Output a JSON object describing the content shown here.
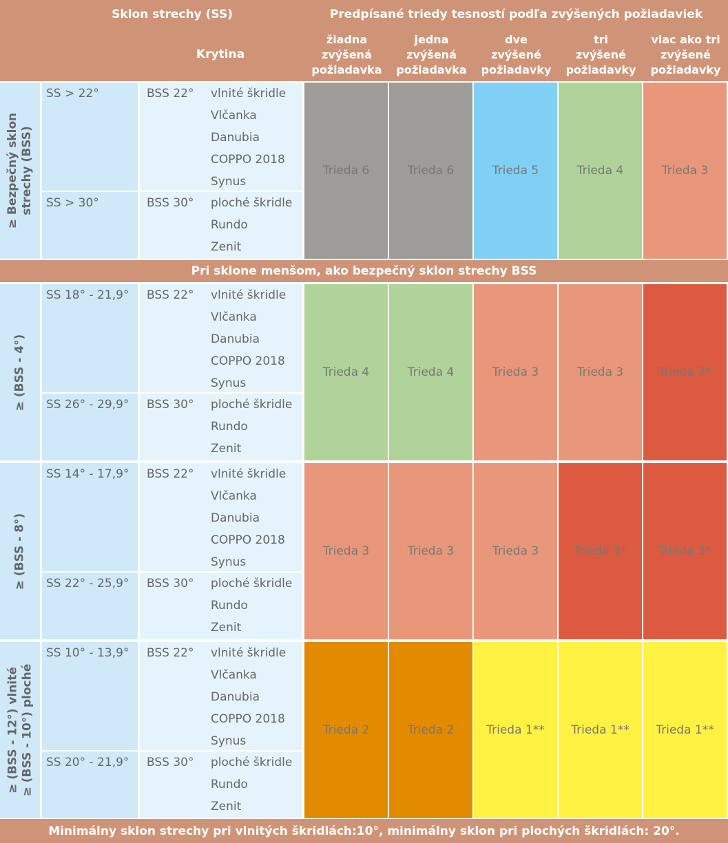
{
  "header": {
    "slope_title": "Sklon strechy (SS)",
    "covering_title": "Krytina",
    "classes_title": "Predpísané triedy tesností podľa zvýšených požiadaviek",
    "columns": [
      "žiadna\nzvýšená\npožiadavka",
      "jedna\nzvýšená\npožiadavka",
      "dve\nzvýšené\npožiadavky",
      "tri\nzvýšené\npožiadavky",
      "viac ako tri\nzvýšené\npožiadavky"
    ]
  },
  "colors": {
    "header": "#cf9478",
    "gray": "#9d9c98",
    "blue": "#80d0f5",
    "green": "#b0d39a",
    "salmon": "#e8977a",
    "red": "#db5a40",
    "orange": "#e28b00",
    "yellow": "#fff243"
  },
  "separator_text": "Pri sklone menšom, ako bezpečný sklon strechy BSS",
  "footer_text": "Minimálny sklon strechy pri vlnitých škridlách:10°, minimálny sklon pri plochých škridlách: 20°.",
  "groups": [
    {
      "label": "≥ Bezpečný sklon\nstrechy (BSS)",
      "rows": [
        {
          "ss": "SS > 22°",
          "bss": "BSS 22°",
          "tiles": [
            "vlnité škridle",
            "Vlčanka",
            "Danubia",
            "COPPO 2018",
            "Synus"
          ]
        },
        {
          "ss": "SS > 30°",
          "bss": "BSS 30°",
          "tiles": [
            "ploché škridle",
            "Rundo",
            "Zenit"
          ]
        }
      ],
      "cells": [
        {
          "text": "Trieda 6",
          "color": "gray"
        },
        {
          "text": "Trieda 6",
          "color": "gray"
        },
        {
          "text": "Trieda 5",
          "color": "blue"
        },
        {
          "text": "Trieda 4",
          "color": "green"
        },
        {
          "text": "Trieda 3",
          "color": "salmon"
        }
      ]
    },
    {
      "label": "≥ (BSS - 4°)",
      "rows": [
        {
          "ss": "SS 18° - 21,9°",
          "bss": "BSS 22°",
          "tiles": [
            "vlnité škridle",
            "Vlčanka",
            "Danubia",
            "COPPO 2018",
            "Synus"
          ]
        },
        {
          "ss": "SS 26° - 29,9°",
          "bss": "BSS 30°",
          "tiles": [
            "ploché škridle",
            "Rundo",
            "Zenit"
          ]
        }
      ],
      "cells": [
        {
          "text": "Trieda 4",
          "color": "green"
        },
        {
          "text": "Trieda 4",
          "color": "green"
        },
        {
          "text": "Trieda 3",
          "color": "salmon"
        },
        {
          "text": "Trieda 3",
          "color": "salmon"
        },
        {
          "text": "Trieda 3*",
          "color": "red"
        }
      ]
    },
    {
      "label": "≥ (BSS - 8°)",
      "rows": [
        {
          "ss": "SS 14° - 17,9°",
          "bss": "BSS 22°",
          "tiles": [
            "vlnité škridle",
            "Vlčanka",
            "Danubia",
            "COPPO 2018",
            "Synus"
          ]
        },
        {
          "ss": "SS 22° - 25,9°",
          "bss": "BSS 30°",
          "tiles": [
            "ploché škridle",
            "Rundo",
            "Zenit"
          ]
        }
      ],
      "cells": [
        {
          "text": "Trieda 3",
          "color": "salmon"
        },
        {
          "text": "Trieda 3",
          "color": "salmon"
        },
        {
          "text": "Trieda 3",
          "color": "salmon"
        },
        {
          "text": "Trieda 3*",
          "color": "red"
        },
        {
          "text": "Trieda 3*",
          "color": "red"
        }
      ]
    },
    {
      "label": "≥ (BSS - 12°) vlnité\n≥ (BSS - 10°) ploché",
      "rows": [
        {
          "ss": "SS 10° - 13,9°",
          "bss": "BSS 22°",
          "tiles": [
            "vlnité škridle",
            "Vlčanka",
            "Danubia",
            "COPPO 2018",
            "Synus"
          ]
        },
        {
          "ss": "SS 20° - 21,9°",
          "bss": "BSS 30°",
          "tiles": [
            "ploché škridle",
            "Rundo",
            "Zenit"
          ]
        }
      ],
      "cells": [
        {
          "text": "Trieda 2",
          "color": "orange"
        },
        {
          "text": "Trieda 2",
          "color": "orange"
        },
        {
          "text": "Trieda 1**",
          "color": "yellow"
        },
        {
          "text": "Trieda 1**",
          "color": "yellow"
        },
        {
          "text": "Trieda 1**",
          "color": "yellow"
        }
      ]
    }
  ]
}
